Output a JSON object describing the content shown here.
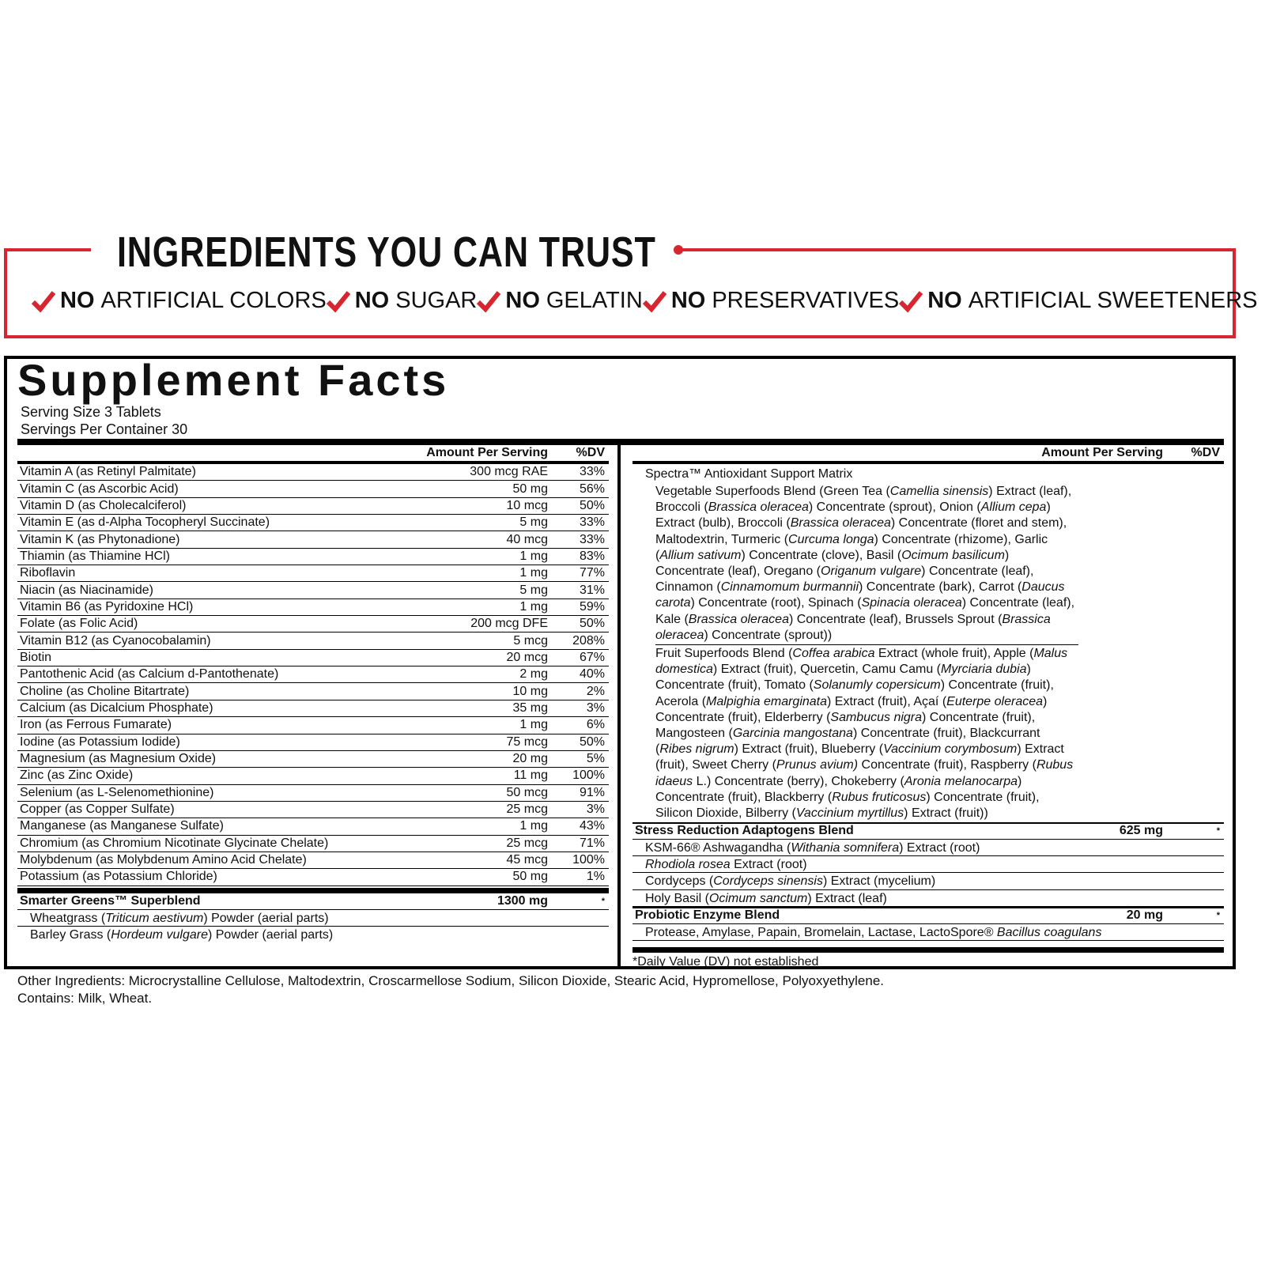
{
  "banner": {
    "title": "INGREDIENTS YOU CAN TRUST",
    "claims": [
      {
        "strong": "NO",
        "text": "ARTIFICIAL COLORS"
      },
      {
        "strong": "NO",
        "text": "SUGAR"
      },
      {
        "strong": "NO",
        "text": "GELATIN"
      },
      {
        "strong": "NO",
        "text": "PRESERVATIVES"
      },
      {
        "strong": "NO",
        "text": "ARTIFICIAL SWEETENERS"
      }
    ]
  },
  "facts": {
    "title": "Supplement Facts",
    "serving_size": "Serving Size 3 Tablets",
    "servings": "Servings Per Container 30",
    "left": {
      "headers": [
        "Amount Per Serving",
        "%DV"
      ],
      "rows": [
        [
          "Vitamin A (as Retinyl Palmitate)",
          "300 mcg RAE",
          "33%"
        ],
        [
          "Vitamin C (as Ascorbic Acid)",
          "50 mg",
          "56%"
        ],
        [
          "Vitamin D (as Cholecalciferol)",
          "10 mcg",
          "50%"
        ],
        [
          "Vitamin E (as d-Alpha Tocopheryl Succinate)",
          "5 mg",
          "33%"
        ],
        [
          "Vitamin K (as Phytonadione)",
          "40 mcg",
          "33%"
        ],
        [
          "Thiamin (as Thiamine HCl)",
          "1 mg",
          "83%"
        ],
        [
          "Riboflavin",
          "1 mg",
          "77%"
        ],
        [
          "Niacin (as Niacinamide)",
          "5 mg",
          "31%"
        ],
        [
          "Vitamin B6 (as Pyridoxine HCl)",
          "1 mg",
          "59%"
        ],
        [
          "Folate (as Folic Acid)",
          "200 mcg DFE",
          "50%"
        ],
        [
          "Vitamin B12 (as Cyanocobalamin)",
          "5 mcg",
          "208%"
        ],
        [
          "Biotin",
          "20 mcg",
          "67%"
        ],
        [
          "Pantothenic Acid (as Calcium d-Pantothenate)",
          "2 mg",
          "40%"
        ],
        [
          "Choline (as Choline Bitartrate)",
          "10 mg",
          "2%"
        ],
        [
          "Calcium (as Dicalcium Phosphate)",
          "35 mg",
          "3%"
        ],
        [
          "Iron (as Ferrous Fumarate)",
          "1 mg",
          "6%"
        ],
        [
          "Iodine (as Potassium Iodide)",
          "75 mcg",
          "50%"
        ],
        [
          "Magnesium (as Magnesium Oxide)",
          "20 mg",
          "5%"
        ],
        [
          "Zinc (as Zinc Oxide)",
          "11 mg",
          "100%"
        ],
        [
          "Selenium (as L-Selenomethionine)",
          "50 mcg",
          "91%"
        ],
        [
          "Copper (as Copper Sulfate)",
          "25 mcg",
          "3%"
        ],
        [
          "Manganese (as Manganese Sulfate)",
          "1 mg",
          "43%"
        ],
        [
          "Chromium (as Chromium Nicotinate Glycinate Chelate)",
          "25 mcg",
          "71%"
        ],
        [
          "Molybdenum (as Molybdenum Amino Acid Chelate)",
          "45 mcg",
          "100%"
        ],
        [
          "Potassium (as Potassium Chloride)",
          "50 mg",
          "1%"
        ]
      ],
      "blend": {
        "name": "Smarter Greens™ Superblend",
        "amount": "1300 mg",
        "dv": "*",
        "items": [
          [
            "Wheatgrass (",
            {
              "italic": "Triticum aestivum"
            },
            ") Powder (aerial parts)"
          ],
          [
            "Barley Grass (",
            {
              "italic": "Hordeum vulgare"
            },
            ") Powder (aerial parts)"
          ]
        ]
      }
    },
    "right": {
      "headers": [
        "Amount Per Serving",
        "%DV"
      ],
      "matrix": {
        "name": "Spectra™ Antioxidant Support Matrix",
        "paragraphs": [
          [
            "Vegetable Superfoods Blend (Green Tea (",
            {
              "italic": "Camellia sinensis"
            },
            ") Extract (leaf), Broccoli (",
            {
              "italic": "Brassica oleracea"
            },
            ") Concentrate (sprout), Onion (",
            {
              "italic": "Allium cepa"
            },
            ") Extract (bulb), Broccoli (",
            {
              "italic": "Brassica oleracea"
            },
            ") Concentrate (floret and stem), Maltodextrin, Turmeric (",
            {
              "italic": "Curcuma longa"
            },
            ") Concentrate (rhizome), Garlic (",
            {
              "italic": "Allium sativum"
            },
            ") Concentrate (clove), Basil (",
            {
              "italic": "Ocimum basilicum"
            },
            ") Concentrate (leaf), Oregano (",
            {
              "italic": "Origanum vulgare"
            },
            ") Concentrate (leaf), Cinnamon (",
            {
              "italic": "Cinnamomum burmannii"
            },
            ") Concentrate (bark), Carrot (",
            {
              "italic": "Daucus carota"
            },
            ") Concentrate (root), Spinach (",
            {
              "italic": "Spinacia oleracea"
            },
            ") Concentrate (leaf), Kale (",
            {
              "italic": "Brassica oleracea"
            },
            ") Concentrate (leaf), Brussels Sprout (",
            {
              "italic": "Brassica oleracea"
            },
            ") Concentrate (sprout))"
          ],
          [
            "Fruit Superfoods Blend (",
            {
              "italic": "Coffea arabica"
            },
            " Extract (whole fruit), Apple (",
            {
              "italic": "Malus domestica"
            },
            ") Extract (fruit), Quercetin, Camu Camu (",
            {
              "italic": "Myrciaria dubia"
            },
            ") Concentrate (fruit), Tomato (",
            {
              "italic": "Solanumly copersicum"
            },
            ") Concentrate (fruit), Acerola (",
            {
              "italic": "Malpighia emarginata"
            },
            ") Extract (fruit), Açaí (",
            {
              "italic": "Euterpe oleracea"
            },
            ") Concentrate (fruit), Elderberry (",
            {
              "italic": "Sambucus nigra"
            },
            ") Concentrate (fruit), Mangosteen (",
            {
              "italic": "Garcinia mangostana"
            },
            ") Concentrate (fruit), Blackcurrant (",
            {
              "italic": "Ribes nigrum"
            },
            ") Extract (fruit), Blueberry (",
            {
              "italic": "Vaccinium corymbosum"
            },
            ") Extract (fruit), Sweet Cherry (",
            {
              "italic": "Prunus avium)"
            },
            " Concentrate (fruit), Raspberry (",
            {
              "italic": "Rubus idaeus"
            },
            " L.) Concentrate (berry), Chokeberry (",
            {
              "italic": "Aronia melanocarpa"
            },
            ") Concentrate (fruit), Blackberry (",
            {
              "italic": "Rubus fruticosus"
            },
            ") Concentrate (fruit), Silicon Dioxide, Bilberry (",
            {
              "italic": "Vaccinium myrtillus"
            },
            ") Extract (fruit))"
          ]
        ]
      },
      "blends": [
        {
          "name": "Stress Reduction Adaptogens Blend",
          "amount": "625 mg",
          "dv": "*",
          "items": [
            [
              "KSM-66® Ashwagandha (",
              {
                "italic": "Withania somnifera"
              },
              ") Extract (root)"
            ],
            [
              {
                "italic": "Rhodiola rosea"
              },
              " Extract (root)"
            ],
            [
              "Cordyceps (",
              {
                "italic": "Cordyceps sinensis"
              },
              ") Extract (mycelium)"
            ],
            [
              "Holy Basil (",
              {
                "italic": "Ocimum sanctum"
              },
              ") Extract (leaf)"
            ]
          ]
        },
        {
          "name": "Probiotic Enzyme Blend",
          "amount": "20 mg",
          "dv": "*",
          "items": [
            [
              "Protease, Amylase, Papain, Bromelain, Lactase, LactoSpore® ",
              {
                "italic": "Bacillus coagulans"
              }
            ]
          ]
        }
      ],
      "footnote": "*Daily Value (DV) not established"
    }
  },
  "other_ingredients": "Other Ingredients: Microcrystalline Cellulose, Maltodextrin, Croscarmellose Sodium, Silicon Dioxide, Stearic Acid, Hypromellose, Polyoxyethylene.",
  "contains": "Contains: Milk, Wheat."
}
